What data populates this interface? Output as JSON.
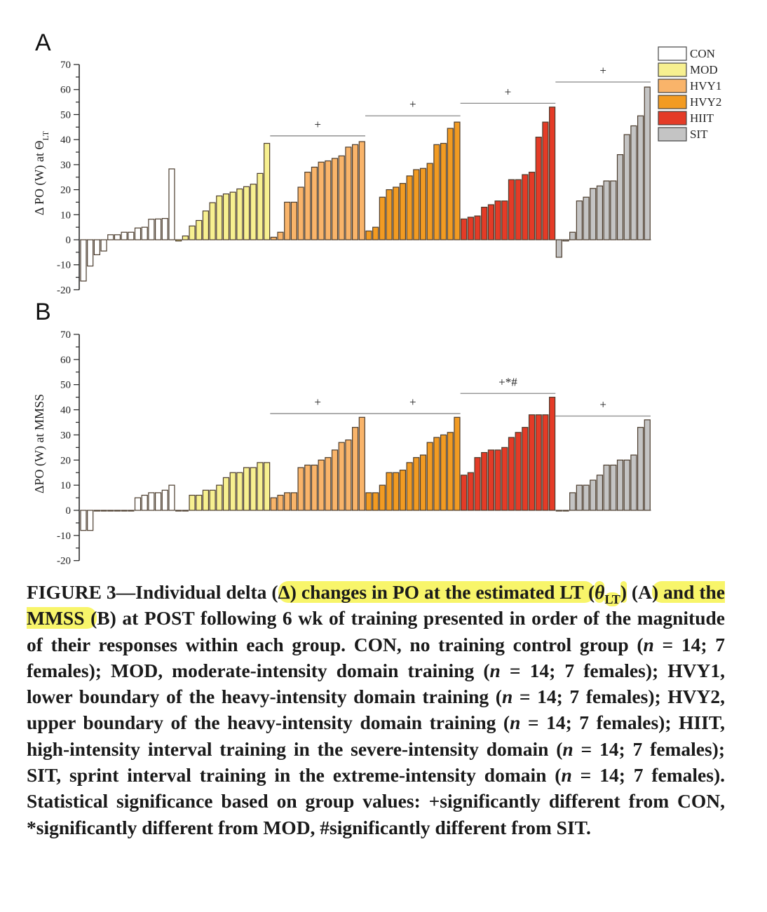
{
  "chart_data": [
    {
      "type": "bar",
      "panel": "A",
      "ylabel": "Δ PO (W) at Θ",
      "ylabel_sub": "LT",
      "ylim": [
        -20,
        70
      ],
      "yticks": [
        -20,
        -10,
        0,
        10,
        20,
        30,
        40,
        50,
        60,
        70
      ],
      "series": [
        {
          "name": "CON",
          "values": [
            -16.5,
            -10.5,
            -6,
            -4.5,
            2,
            2,
            3,
            3,
            4.7,
            5,
            8.2,
            8.3,
            8.5,
            28.3
          ]
        },
        {
          "name": "MOD",
          "values": [
            -0.5,
            1.5,
            5.5,
            7.7,
            11.5,
            14.8,
            17.5,
            18.3,
            19,
            20.3,
            21.2,
            22.2,
            26.5,
            38.5
          ]
        },
        {
          "name": "HVY1",
          "values": [
            1,
            3,
            15,
            15,
            21,
            27,
            29,
            31,
            31.5,
            32.5,
            33.5,
            37,
            38,
            39.2
          ]
        },
        {
          "name": "HVY2",
          "values": [
            3.5,
            5,
            17,
            20,
            21,
            22.5,
            25.5,
            28,
            28.5,
            30.5,
            38,
            38.5,
            44.5,
            47
          ]
        },
        {
          "name": "HIIT",
          "values": [
            8.3,
            9,
            9.5,
            13,
            14,
            15.5,
            15.5,
            24,
            24,
            26,
            27,
            41,
            47,
            53
          ]
        },
        {
          "name": "SIT",
          "values": [
            -7,
            -0.5,
            3,
            15.5,
            17,
            20.5,
            21.5,
            23.5,
            23.5,
            34,
            42,
            45.5,
            49.5,
            61
          ]
        }
      ],
      "significance": [
        {
          "group": "HVY1",
          "label": "+",
          "level": 41.5
        },
        {
          "group": "HVY2",
          "label": "+",
          "level": 49.5
        },
        {
          "group": "HIIT",
          "label": "+",
          "level": 54.5
        },
        {
          "group": "SIT",
          "label": "+",
          "level": 63
        }
      ],
      "legend": "top-right"
    },
    {
      "type": "bar",
      "panel": "B",
      "ylabel": "ΔPO (W) at MMSS",
      "ylim": [
        -20,
        70
      ],
      "yticks": [
        -20,
        -10,
        0,
        10,
        20,
        30,
        40,
        50,
        60,
        70
      ],
      "series": [
        {
          "name": "CON",
          "values": [
            -8,
            -8,
            0,
            0,
            0,
            0,
            0,
            0,
            5,
            6,
            7,
            7,
            8,
            10
          ]
        },
        {
          "name": "MOD",
          "values": [
            0,
            0,
            6,
            6,
            8,
            8,
            10,
            13,
            15,
            15,
            17,
            17,
            19,
            19
          ]
        },
        {
          "name": "HVY1",
          "values": [
            5,
            6,
            7,
            7,
            17,
            18,
            18,
            20,
            21,
            24,
            27,
            28,
            33,
            37
          ]
        },
        {
          "name": "HVY2",
          "values": [
            7,
            7,
            10,
            15,
            15,
            16,
            19,
            21,
            22,
            27,
            29,
            30,
            31,
            37
          ]
        },
        {
          "name": "HIIT",
          "values": [
            14,
            15,
            21,
            23,
            24,
            24,
            25,
            29,
            31,
            33,
            38,
            38,
            38,
            45
          ]
        },
        {
          "name": "SIT",
          "values": [
            0,
            0,
            7,
            10,
            10,
            12,
            14,
            18,
            18,
            20,
            20,
            22,
            33,
            36
          ]
        }
      ],
      "significance": [
        {
          "group": "HVY1",
          "label": "+",
          "level": 38.5
        },
        {
          "group": "HVY2",
          "label": "+",
          "level": 38.5
        },
        {
          "group": "HIIT",
          "label": "+*#",
          "level": 46.5
        },
        {
          "group": "SIT",
          "label": "+",
          "level": 37.5
        }
      ]
    }
  ],
  "legend": [
    {
      "label": "CON",
      "color": "#ffffff"
    },
    {
      "label": "MOD",
      "color": "#f7f090"
    },
    {
      "label": "HVY1",
      "color": "#f9b46a"
    },
    {
      "label": "HVY2",
      "color": "#f29b22"
    },
    {
      "label": "HIIT",
      "color": "#e43b27"
    },
    {
      "label": "SIT",
      "color": "#c4c4c4"
    }
  ],
  "caption": [
    {
      "s": "",
      "t": "FIGURE 3—Individual delta ("
    },
    {
      "s": "hl",
      "t": "Δ) changes in PO at the estimated LT ("
    },
    {
      "s": "hl-it",
      "t": "θ"
    },
    {
      "s": "hl-sub",
      "t": "LT"
    },
    {
      "s": "hl",
      "t": ")"
    },
    {
      "s": "",
      "t": " (A"
    },
    {
      "s": "hl",
      "t": ") and the MMSS ("
    },
    {
      "s": "",
      "t": "B) at POST following 6 wk of training presented in order of the magnitude of their responses within each group. CON, no training control group ("
    },
    {
      "s": "it",
      "t": "n"
    },
    {
      "s": "",
      "t": " = 14; 7 females); MOD, moderate-intensity domain training ("
    },
    {
      "s": "it",
      "t": "n"
    },
    {
      "s": "",
      "t": " = 14; 7 females); HVY1, lower boundary of the heavy-intensity domain training ("
    },
    {
      "s": "it",
      "t": "n"
    },
    {
      "s": "",
      "t": " = 14; 7 females); HVY2, upper boundary of the heavy-intensity domain training ("
    },
    {
      "s": "it",
      "t": "n"
    },
    {
      "s": "",
      "t": " = 14; 7 females); HIIT, high-intensity interval training in the severe-intensity domain ("
    },
    {
      "s": "it",
      "t": "n"
    },
    {
      "s": "",
      "t": " = 14; 7 females); SIT, sprint interval training in the extreme-intensity domain ("
    },
    {
      "s": "it",
      "t": "n"
    },
    {
      "s": "",
      "t": " = 14; 7 females). Statistical significance based on group values: +significantly different from CON, *significantly different from MOD, #significantly different from SIT."
    }
  ]
}
